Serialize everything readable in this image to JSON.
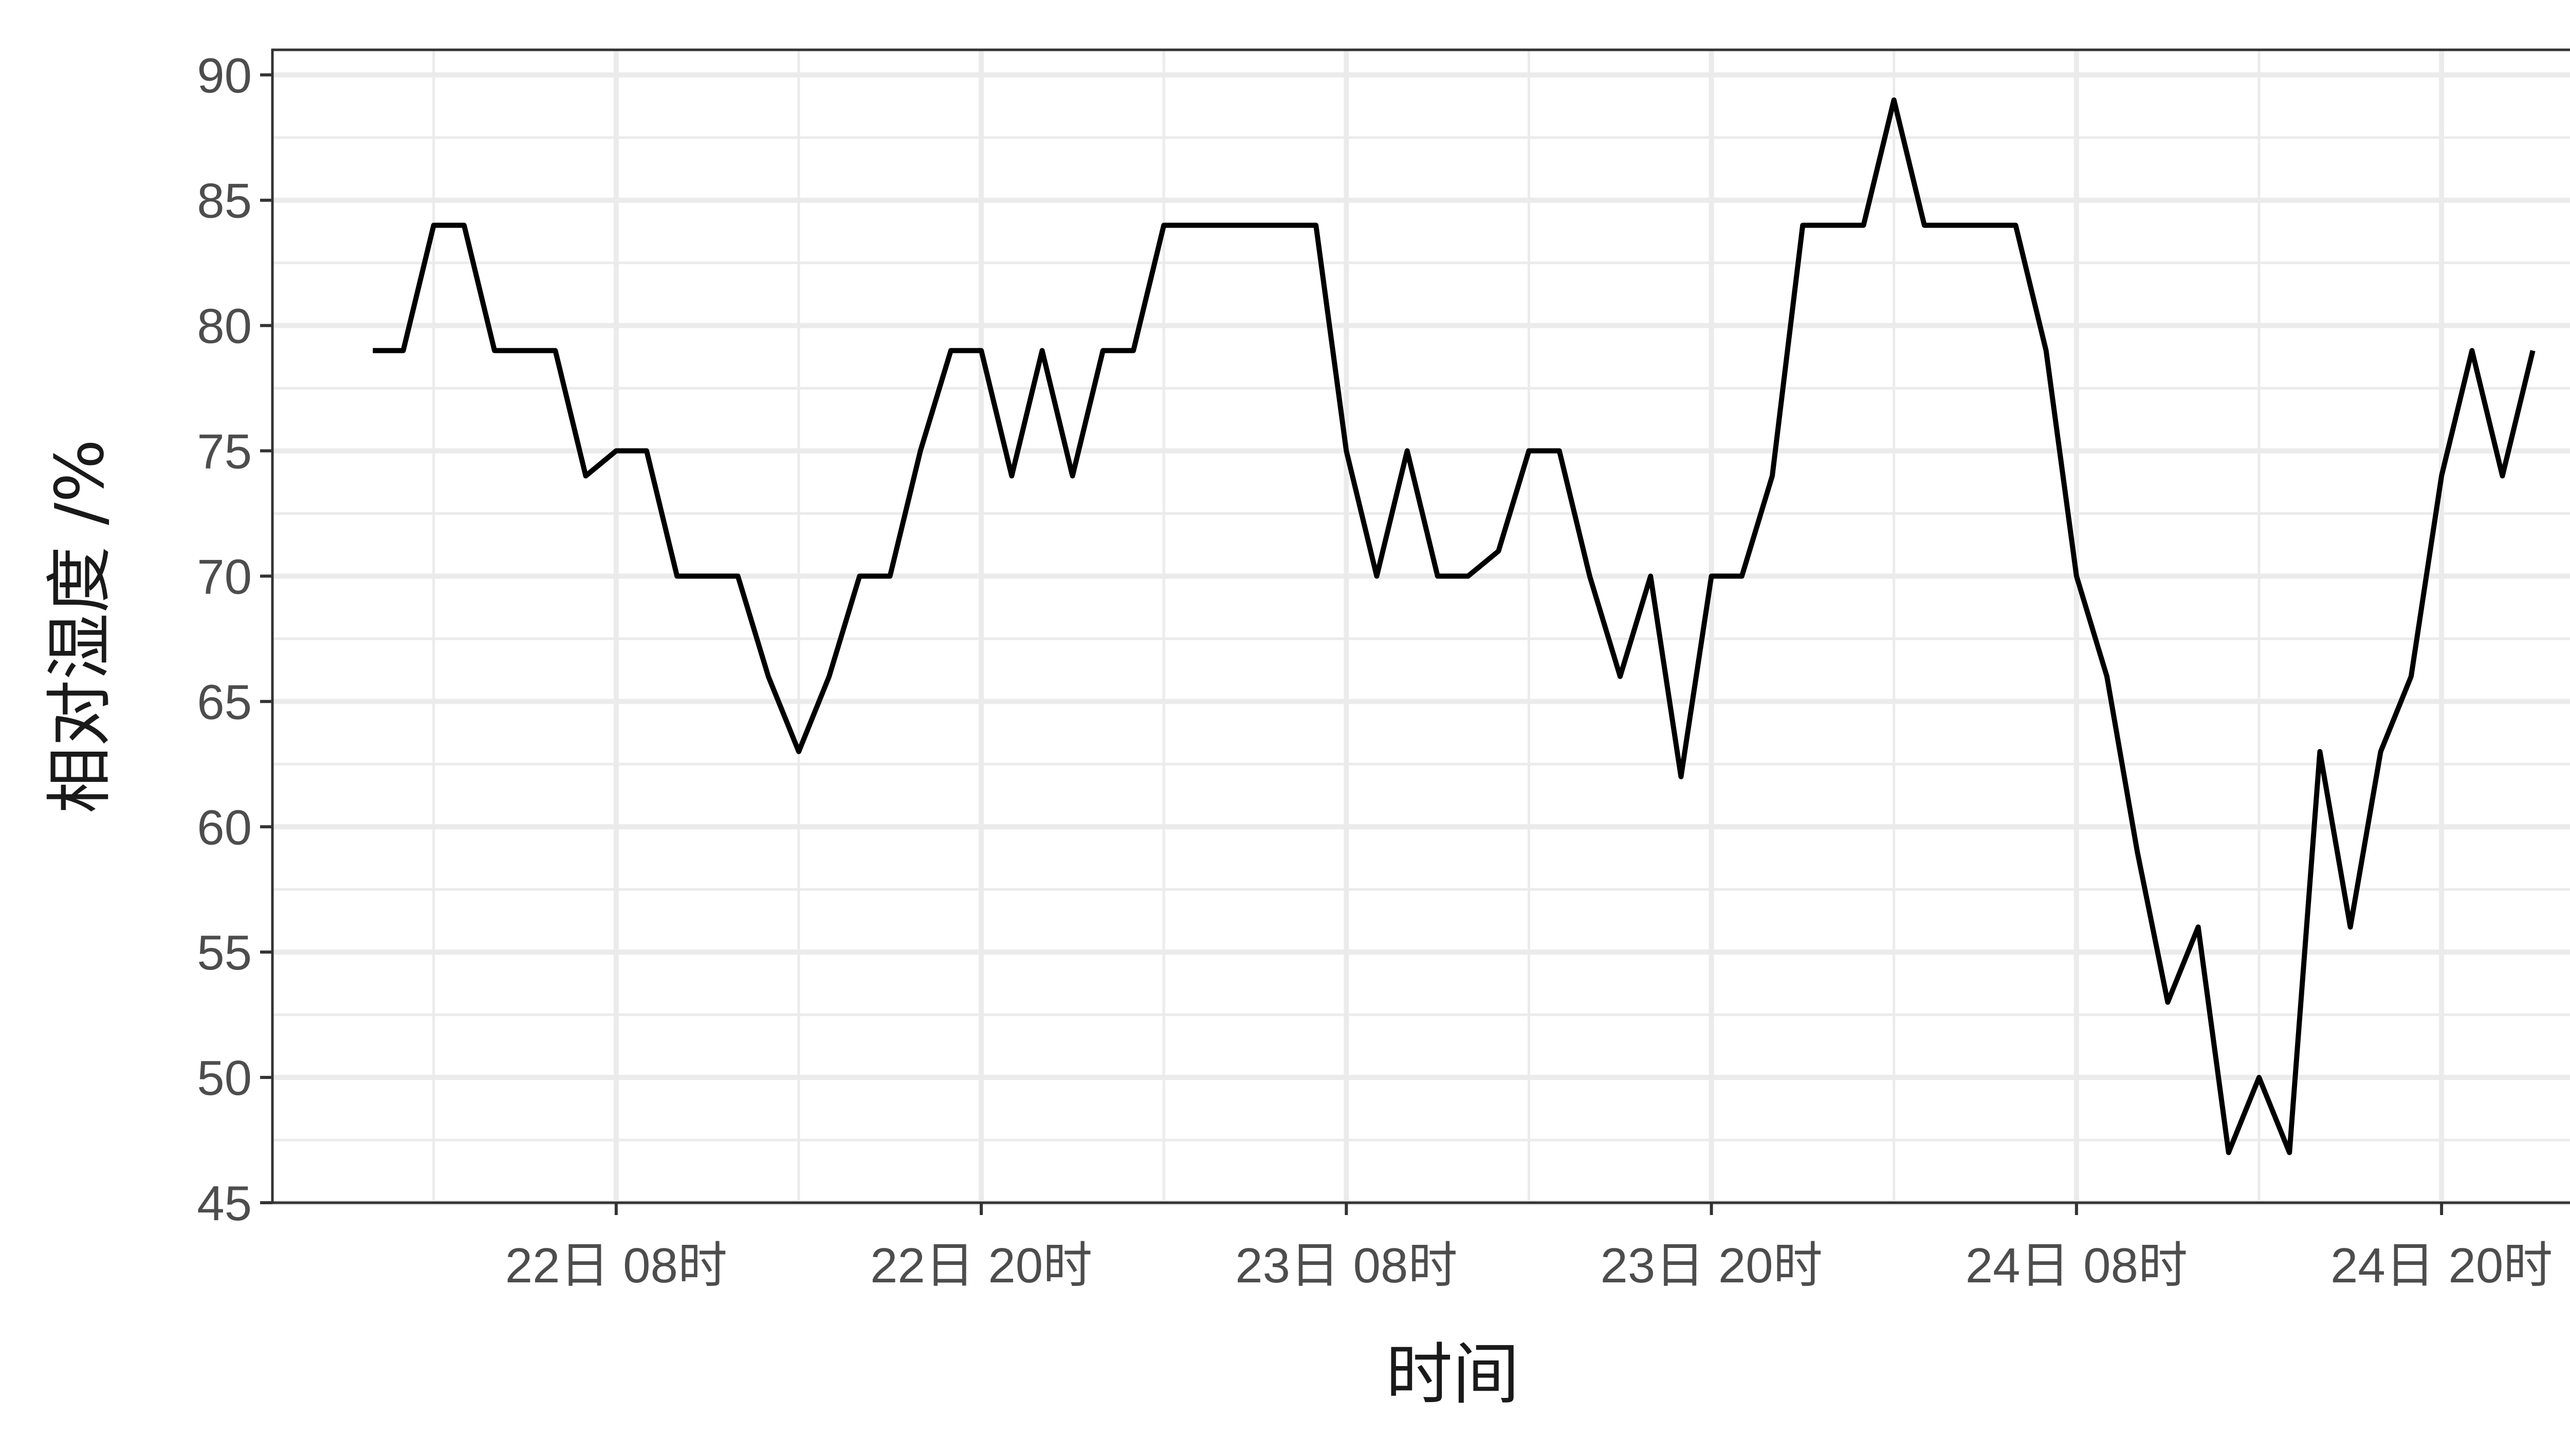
{
  "chart_data": {
    "type": "line",
    "xlabel": "时间",
    "ylabel": "相对湿度 /%",
    "x_unit": "hour",
    "x_ticks": [
      {
        "hour": 8,
        "label": "22日 08时"
      },
      {
        "hour": 20,
        "label": "22日 20时"
      },
      {
        "hour": 32,
        "label": "23日 08时"
      },
      {
        "hour": 44,
        "label": "23日 20时"
      },
      {
        "hour": 56,
        "label": "24日 08时"
      },
      {
        "hour": 68,
        "label": "24日 20时"
      }
    ],
    "xlim": [
      -3.3,
      74.3
    ],
    "y_ticks": [
      45,
      50,
      55,
      60,
      65,
      70,
      75,
      80,
      85,
      90
    ],
    "ylim": [
      45,
      91
    ],
    "grid": true,
    "line_color": "#000000",
    "series": [
      {
        "x": [
          0,
          1,
          2,
          3,
          4,
          5,
          6,
          7,
          8,
          9,
          10,
          11,
          12,
          13,
          14,
          15,
          16,
          17,
          18,
          19,
          20,
          21,
          22,
          23,
          24,
          25,
          26,
          27,
          28,
          29,
          30,
          31,
          32,
          33,
          34,
          35,
          36,
          37,
          38,
          39,
          40,
          41,
          42,
          43,
          44,
          45,
          46,
          47,
          48,
          49,
          50,
          51,
          52,
          53,
          54,
          55,
          56,
          57,
          58,
          59,
          60,
          61,
          62,
          63,
          64,
          65,
          66,
          67,
          68,
          69,
          70,
          71
        ],
        "y": [
          79,
          79,
          84,
          84,
          79,
          79,
          79,
          74,
          75,
          75,
          70,
          70,
          70,
          66,
          63,
          66,
          70,
          70,
          75,
          79,
          79,
          74,
          79,
          74,
          79,
          79,
          84,
          84,
          84,
          84,
          84,
          84,
          75,
          70,
          75,
          70,
          70,
          71,
          75,
          75,
          70,
          66,
          70,
          62,
          70,
          70,
          74,
          84,
          84,
          84,
          89,
          84,
          84,
          84,
          84,
          79,
          70,
          66,
          59,
          53,
          56,
          47,
          50,
          47,
          63,
          56,
          63,
          66,
          74,
          79,
          74,
          79
        ]
      }
    ]
  }
}
